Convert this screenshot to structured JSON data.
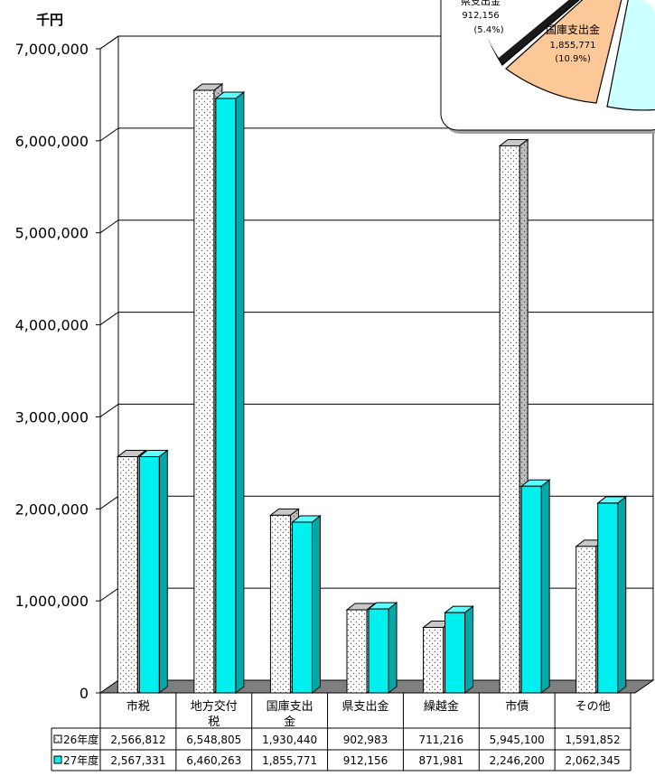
{
  "chart_data": {
    "type": "bar",
    "unit_label": "千円",
    "categories": [
      [
        "市税"
      ],
      [
        "地方交付",
        "税"
      ],
      [
        "国庫支出",
        "金"
      ],
      [
        "県支出金"
      ],
      [
        "繰越金"
      ],
      [
        "市債"
      ],
      [
        "その他"
      ]
    ],
    "series": [
      {
        "name": "26年度",
        "values": [
          2566812,
          6548805,
          1930440,
          902983,
          711216,
          5945100,
          1591852
        ],
        "display": [
          "2,566,812",
          "6,548,805",
          "1,930,440",
          "902,983",
          "711,216",
          "5,945,100",
          "1,591,852"
        ],
        "pattern": "dotted-white"
      },
      {
        "name": "27年度",
        "values": [
          2567331,
          6460263,
          1855771,
          912156,
          871981,
          2246200,
          2062345
        ],
        "display": [
          "2,567,331",
          "6,460,263",
          "1,855,771",
          "912,156",
          "871,981",
          "2,246,200",
          "2,062,345"
        ],
        "pattern": "solid-cyan"
      }
    ],
    "ylim": [
      0,
      7000000
    ],
    "yticks": [
      "0",
      "1,000,000",
      "2,000,000",
      "3,000,000",
      "4,000,000",
      "5,000,000",
      "6,000,000",
      "7,000,000"
    ],
    "grid": true,
    "legend": "table-bottom",
    "colors": {
      "cyan": "#00f0f0",
      "cyan_side": "#00a8a8",
      "cyan_top": "#60ffff",
      "floor": "#7f7f7f",
      "pie_orange": "#fcc898",
      "pie_cyan": "#ccffff"
    }
  },
  "pie_inset": {
    "labels": [
      {
        "name": "県支出金",
        "value": "912,156",
        "pct": "(5.4%)"
      },
      {
        "name": "国庫支出金",
        "value": "1,855,771",
        "pct": "(10.9%)"
      }
    ]
  }
}
